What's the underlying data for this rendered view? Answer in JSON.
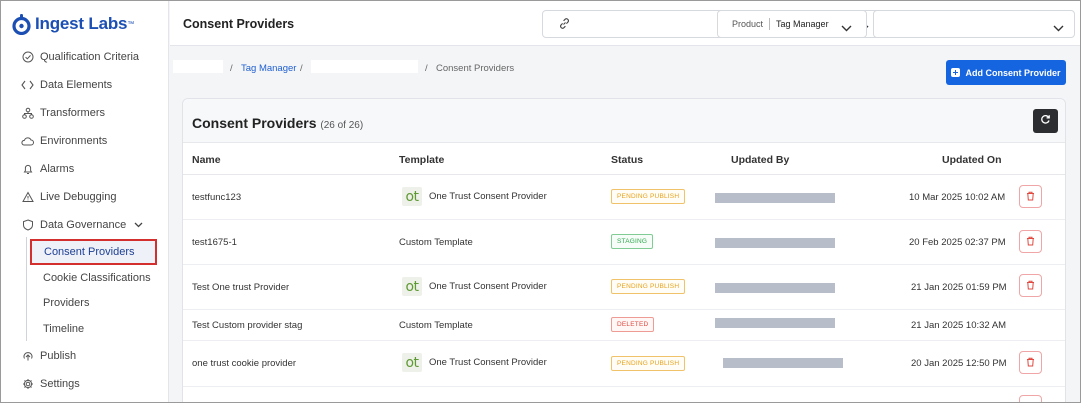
{
  "brand": {
    "name": "Ingest Labs",
    "tm": "™",
    "color": "#1b4fb3"
  },
  "sidebar": {
    "items": [
      {
        "label": "Qualification Criteria",
        "icon": "check-circle-icon"
      },
      {
        "label": "Data Elements",
        "icon": "code-brackets-icon"
      },
      {
        "label": "Transformers",
        "icon": "hierarchy-icon"
      },
      {
        "label": "Environments",
        "icon": "cloud-icon"
      },
      {
        "label": "Alarms",
        "icon": "bell-icon"
      },
      {
        "label": "Live Debugging",
        "icon": "warning-triangle-icon"
      },
      {
        "label": "Data Governance",
        "icon": "shield-icon"
      }
    ],
    "governance_sub": [
      {
        "label": "Consent Providers",
        "active": true
      },
      {
        "label": "Cookie Classifications"
      },
      {
        "label": "Providers"
      },
      {
        "label": "Timeline"
      }
    ],
    "bottom": [
      {
        "label": "Publish",
        "icon": "publish-icon"
      },
      {
        "label": "Settings",
        "icon": "gear-icon"
      }
    ]
  },
  "topbar": {
    "title": "Consent Providers",
    "product_label": "Product",
    "product_value": "Tag Manager"
  },
  "breadcrumb": {
    "sep": "/",
    "tag_manager": "Tag Manager",
    "current": "Consent Providers"
  },
  "actions": {
    "add_label": "Add Consent Provider",
    "accent": "#1565e0"
  },
  "card": {
    "title": "Consent Providers",
    "count": "(26 of 26)"
  },
  "table": {
    "headers": {
      "name": "Name",
      "template": "Template",
      "status": "Status",
      "updated_by": "Updated By",
      "updated_on": "Updated On"
    },
    "rows": [
      {
        "name": "testfunc123",
        "template": "One Trust Consent Provider",
        "logo": "ot",
        "status": "PENDING PUBLISH",
        "updated_on": "10 Mar 2025 10:02 AM"
      },
      {
        "name": "test1675-1",
        "template": "Custom Template",
        "logo": "",
        "status": "STAGING",
        "updated_on": "20 Feb 2025 02:37 PM"
      },
      {
        "name": "Test One trust Provider",
        "template": "One Trust Consent Provider",
        "logo": "ot",
        "status": "PENDING PUBLISH",
        "updated_on": "21 Jan 2025 01:59 PM"
      },
      {
        "name": "Test Custom provider stag",
        "template": "Custom Template",
        "logo": "",
        "status": "DELETED",
        "updated_on": "21 Jan 2025 10:32 AM"
      },
      {
        "name": "one trust cookie provider",
        "template": "One Trust Consent Provider",
        "logo": "ot",
        "status": "PENDING PUBLISH",
        "updated_on": "20 Jan 2025 12:50 PM"
      }
    ]
  }
}
